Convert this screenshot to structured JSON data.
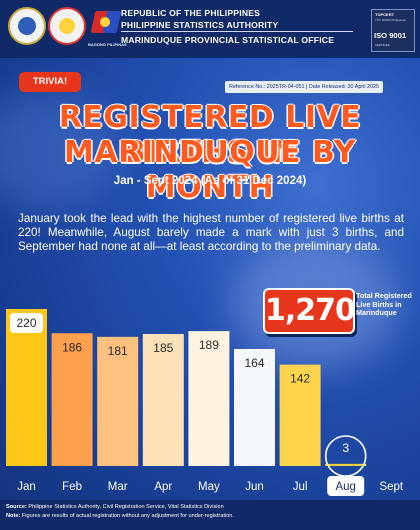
{
  "header": {
    "line1": "REPUBLIC OF THE PHILIPPINES",
    "line2": "PHILIPPINE STATISTICS AUTHORITY",
    "line3": "MARINDUQUE PROVINCIAL STATISTICAL OFFICE",
    "logo_caption": "BAGONG PILIPINAS",
    "iso": {
      "top": "TOPCERT",
      "sub": "TÜV NORD Philippines",
      "main": "ISO 9001",
      "bottom": "CERTIFIED"
    }
  },
  "badge": "TRIVIA!",
  "reference": "Reference No.: 2025TR-04-051 | Date Released: 30 April 2025",
  "title_line1": "REGISTERED LIVE BIRTHS IN",
  "title_line2": "MARINDUQUE BY MONTH",
  "subtitle": "Jan - Sept 2024 (As of 31 Dec 2024)",
  "description": "January took the lead with the highest number of registered live births at 220! Meanwhile, August barely made a mark with just 3 births, and September had none at all—at least according to the preliminary data.",
  "total": {
    "value": "1,270",
    "label": "Total Registered Live Births in Marinduque"
  },
  "footer": {
    "source_label": "Source:",
    "source": "Philippine Statistics Authority, Civil Registration Service, Vital Statistics Division",
    "note_label": "Note:",
    "note": "Figures are results of actual registration without any adjustment for under-registration."
  },
  "chart_data": {
    "type": "bar",
    "title": "",
    "categories": [
      "Jan",
      "Feb",
      "Mar",
      "Apr",
      "May",
      "Jun",
      "Jul",
      "Aug",
      "Sept"
    ],
    "values": [
      220,
      186,
      181,
      185,
      189,
      164,
      142,
      3,
      0
    ],
    "value_labels": [
      "220",
      "186",
      "181",
      "185",
      "189",
      "164",
      "142",
      "3",
      ""
    ],
    "ylim": [
      0,
      220
    ],
    "grid": false,
    "legend": "none",
    "colors": [
      "#ffc61a",
      "#ffa04d",
      "#ffc180",
      "#fbe1b8",
      "#fff2e1",
      "#f4f7fc",
      "#ffd54d",
      "#ffcf3f",
      "#ffcf3f"
    ]
  }
}
